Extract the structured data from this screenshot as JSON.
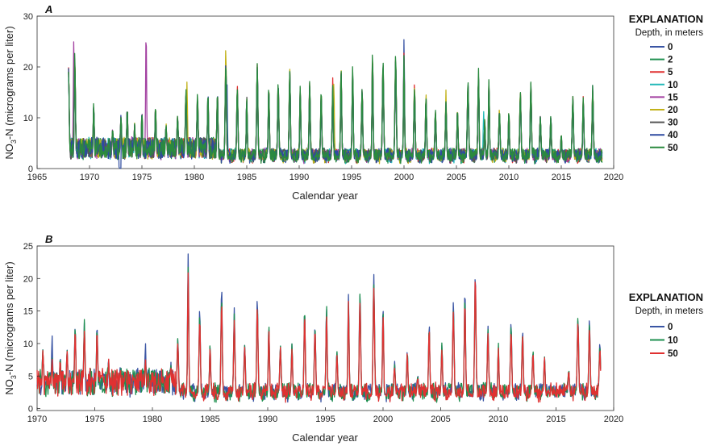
{
  "chart_data": [
    {
      "type": "line",
      "panel": "A",
      "xlabel": "Calendar year",
      "ylabel_main": "NO",
      "ylabel_sub": "3",
      "ylabel_rest": "-N (micrograms per liter)",
      "xlim": [
        1965,
        2020
      ],
      "ylim": [
        0,
        30
      ],
      "xticks": [
        1965,
        1970,
        1975,
        1980,
        1985,
        1990,
        1995,
        2000,
        2005,
        2010,
        2015,
        2020
      ],
      "yticks": [
        0,
        10,
        20,
        30
      ],
      "legend": {
        "title": "EXPLANATION",
        "subtitle": "Depth, in meters",
        "placement": "right"
      },
      "series": [
        {
          "name": "0",
          "color": "#3a55a4",
          "spike_scale": 0.88,
          "peak_overrides": [
            [
              1972.9,
              0
            ],
            [
              2000.0,
              25.5
            ]
          ]
        },
        {
          "name": "2",
          "color": "#1e8f4f",
          "spike_scale": 0.9,
          "peak_overrides": []
        },
        {
          "name": "5",
          "color": "#e03131",
          "spike_scale": 0.92,
          "peak_overrides": [
            [
              1993.2,
              18
            ],
            [
              2001.0,
              17
            ]
          ]
        },
        {
          "name": "10",
          "color": "#22b8b8",
          "spike_scale": 0.86,
          "peak_overrides": [
            [
              2007.6,
              11
            ]
          ]
        },
        {
          "name": "15",
          "color": "#a23fa0",
          "spike_scale": 0.9,
          "peak_overrides": [
            [
              1975.4,
              27
            ],
            [
              1968.5,
              25
            ]
          ]
        },
        {
          "name": "20",
          "color": "#c2b21a",
          "spike_scale": 0.93,
          "peak_overrides": [
            [
              1983.0,
              24
            ],
            [
              1979.3,
              17
            ],
            [
              1993.3,
              17
            ],
            [
              2004.0,
              15.2
            ]
          ]
        },
        {
          "name": "30",
          "color": "#555555",
          "spike_scale": 0.9,
          "peak_overrides": []
        },
        {
          "name": "40",
          "color": "#2f4aa0",
          "spike_scale": 0.92,
          "peak_overrides": [
            [
              1983.1,
              18
            ]
          ]
        },
        {
          "name": "50",
          "color": "#2a8a3e",
          "spike_scale": 0.95,
          "peak_overrides": []
        }
      ],
      "data_start": 1968,
      "data_end": 2018.9,
      "peaks": [
        [
          1968.0,
          21
        ],
        [
          1968.6,
          24
        ],
        [
          1970.4,
          13.5
        ],
        [
          1972.2,
          8
        ],
        [
          1973.0,
          11
        ],
        [
          1973.6,
          13
        ],
        [
          1974.3,
          9
        ],
        [
          1975.0,
          12
        ],
        [
          1976.3,
          13
        ],
        [
          1977.3,
          9
        ],
        [
          1978.4,
          11
        ],
        [
          1979.2,
          16
        ],
        [
          1980.3,
          15
        ],
        [
          1981.3,
          15.5
        ],
        [
          1982.2,
          16
        ],
        [
          1983.0,
          22
        ],
        [
          1984.1,
          17
        ],
        [
          1985.0,
          15
        ],
        [
          1986.0,
          22
        ],
        [
          1987.1,
          17
        ],
        [
          1988.0,
          18
        ],
        [
          1989.1,
          21
        ],
        [
          1990.1,
          17
        ],
        [
          1991.0,
          18
        ],
        [
          1992.1,
          16
        ],
        [
          1993.2,
          17
        ],
        [
          1994.0,
          21
        ],
        [
          1995.1,
          21
        ],
        [
          1996.0,
          17
        ],
        [
          1997.0,
          24.5
        ],
        [
          1998.0,
          22
        ],
        [
          1999.2,
          23
        ],
        [
          2000.0,
          24
        ],
        [
          2001.0,
          17
        ],
        [
          2002.1,
          15
        ],
        [
          2003.0,
          12
        ],
        [
          2004.0,
          14
        ],
        [
          2005.1,
          12
        ],
        [
          2006.1,
          18
        ],
        [
          2007.1,
          20
        ],
        [
          2007.7,
          10
        ],
        [
          2008.1,
          19
        ],
        [
          2009.1,
          12
        ],
        [
          2010.0,
          12
        ],
        [
          2011.1,
          16
        ],
        [
          2012.1,
          18
        ],
        [
          2013.0,
          11
        ],
        [
          2014.0,
          11
        ],
        [
          2015.0,
          7
        ],
        [
          2016.1,
          15
        ],
        [
          2017.1,
          15
        ],
        [
          2018.0,
          17
        ]
      ]
    },
    {
      "type": "line",
      "panel": "B",
      "xlabel": "Calendar year",
      "ylabel_main": "NO",
      "ylabel_sub": "3",
      "ylabel_rest": "-N (micrograms per liter)",
      "xlim": [
        1970,
        2020
      ],
      "ylim": [
        -0.3,
        25
      ],
      "xticks": [
        1970,
        1975,
        1980,
        1985,
        1990,
        1995,
        2000,
        2005,
        2010,
        2015,
        2020
      ],
      "yticks": [
        0,
        5,
        10,
        15,
        20,
        25
      ],
      "legend": {
        "title": "EXPLANATION",
        "subtitle": "Depth, in meters",
        "placement": "right"
      },
      "series": [
        {
          "name": "0",
          "color": "#3a55a4",
          "spike_scale": 1.0,
          "peak_overrides": [
            [
              1983.1,
              24
            ],
            [
              1979.4,
              10
            ],
            [
              1971.3,
              11
            ],
            [
              1986.0,
              19
            ],
            [
              1999.2,
              20.8
            ]
          ]
        },
        {
          "name": "10",
          "color": "#1e8f4f",
          "spike_scale": 0.97,
          "peak_overrides": [
            [
              1974.1,
              14
            ]
          ]
        },
        {
          "name": "50",
          "color": "#e03131",
          "spike_scale": 0.93,
          "peak_overrides": [
            [
              2008.0,
              21
            ]
          ]
        }
      ],
      "data_start": 1970,
      "data_end": 2018.9,
      "peaks": [
        [
          1970.5,
          9.5
        ],
        [
          1971.3,
          8
        ],
        [
          1972.0,
          8
        ],
        [
          1972.6,
          9
        ],
        [
          1973.3,
          13
        ],
        [
          1974.1,
          13
        ],
        [
          1975.2,
          13
        ],
        [
          1976.2,
          8
        ],
        [
          1977.2,
          6
        ],
        [
          1978.4,
          5
        ],
        [
          1979.4,
          8
        ],
        [
          1980.6,
          3
        ],
        [
          1981.6,
          7
        ],
        [
          1982.2,
          11
        ],
        [
          1983.1,
          22
        ],
        [
          1984.1,
          15
        ],
        [
          1985.0,
          10
        ],
        [
          1986.0,
          18
        ],
        [
          1987.1,
          15
        ],
        [
          1988.0,
          10
        ],
        [
          1989.1,
          17
        ],
        [
          1990.1,
          13
        ],
        [
          1991.1,
          10
        ],
        [
          1992.1,
          10
        ],
        [
          1993.2,
          15.8
        ],
        [
          1994.1,
          13
        ],
        [
          1995.1,
          16
        ],
        [
          1996.0,
          9
        ],
        [
          1997.0,
          17.5
        ],
        [
          1998.0,
          18
        ],
        [
          1999.2,
          20
        ],
        [
          2000.0,
          16
        ],
        [
          2001.0,
          7
        ],
        [
          2002.1,
          9
        ],
        [
          2003.0,
          5
        ],
        [
          2004.0,
          13
        ],
        [
          2005.1,
          10
        ],
        [
          2006.1,
          16
        ],
        [
          2007.1,
          18
        ],
        [
          2008.0,
          20.8
        ],
        [
          2009.1,
          13
        ],
        [
          2010.0,
          10
        ],
        [
          2011.1,
          13
        ],
        [
          2012.1,
          12.5
        ],
        [
          2013.0,
          9
        ],
        [
          2014.0,
          8
        ],
        [
          2014.6,
          3
        ],
        [
          2015.5,
          3
        ],
        [
          2016.1,
          6
        ],
        [
          2016.9,
          14
        ],
        [
          2017.9,
          14
        ],
        [
          2018.8,
          10
        ]
      ]
    }
  ]
}
